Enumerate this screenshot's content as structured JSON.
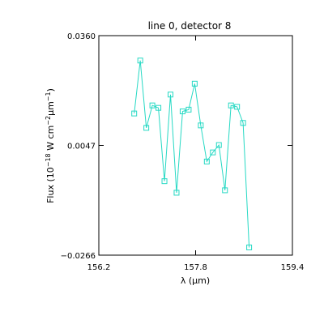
{
  "chart_data": {
    "type": "line",
    "title": "line 0, detector 8",
    "xlabel": "λ (μm)",
    "ylabel": {
      "pre": "Flux (10",
      "exp1": "−18",
      "mid": " W cm",
      "exp2": "−2",
      "mid2": "μm",
      "exp3": "−1",
      "post": ")"
    },
    "xlim": [
      156.2,
      159.4
    ],
    "ylim": [
      -0.0266,
      0.036
    ],
    "x_ticks": [
      156.2,
      157.8,
      159.4
    ],
    "x_tick_labels": [
      "156.2",
      "157.8",
      "159.4"
    ],
    "y_ticks": [
      -0.0266,
      0.0047,
      0.036
    ],
    "y_tick_labels": [
      "−0.0266",
      "0.0047",
      "0.0360"
    ],
    "marker": "square",
    "grid": false,
    "colors": {
      "series": "#26d9c4",
      "axes": "#000000"
    },
    "series": [
      {
        "x": [
          156.785,
          156.885,
          156.985,
          157.085,
          157.185,
          157.285,
          157.385,
          157.485,
          157.585,
          157.685,
          157.785,
          157.885,
          157.985,
          158.085,
          158.185,
          158.285,
          158.385,
          158.485,
          158.585,
          158.685,
          158.785
        ],
        "y": [
          0.0138,
          0.0289,
          0.0097,
          0.0161,
          0.0154,
          -0.0055,
          0.0192,
          -0.0088,
          0.0144,
          0.0149,
          0.0223,
          0.0104,
          0.0001,
          0.0027,
          0.0048,
          -0.0081,
          0.0161,
          0.0157,
          0.0111,
          -0.0244,
          null
        ]
      }
    ]
  }
}
